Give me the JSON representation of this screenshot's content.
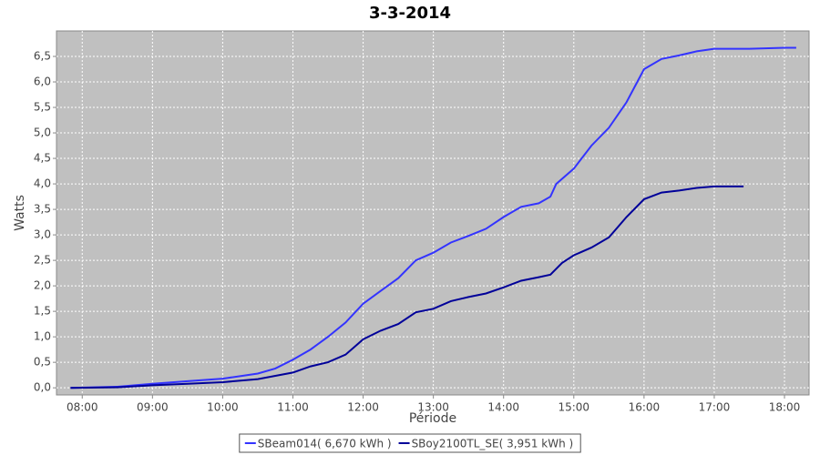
{
  "chart_data": {
    "type": "line",
    "title": "3-3-2014",
    "x_label": "Période",
    "y_label": "Watts",
    "xlim": [
      "07:38",
      "18:21"
    ],
    "xticks": [
      "08:00",
      "09:00",
      "10:00",
      "11:00",
      "12:00",
      "13:00",
      "14:00",
      "15:00",
      "16:00",
      "17:00",
      "18:00"
    ],
    "ylim": [
      -0.14,
      7.0
    ],
    "yticks": [
      {
        "value": 0,
        "label": "0,0"
      },
      {
        "value": 0.5,
        "label": "0,5"
      },
      {
        "value": 1,
        "label": "1,0"
      },
      {
        "value": 1.5,
        "label": "1,5"
      },
      {
        "value": 2,
        "label": "2,0"
      },
      {
        "value": 2.5,
        "label": "2,5"
      },
      {
        "value": 3,
        "label": "3,0"
      },
      {
        "value": 3.5,
        "label": "3,5"
      },
      {
        "value": 4,
        "label": "4,0"
      },
      {
        "value": 4.5,
        "label": "4,5"
      },
      {
        "value": 5,
        "label": "5,0"
      },
      {
        "value": 5.5,
        "label": "5,5"
      },
      {
        "value": 6,
        "label": "6,0"
      },
      {
        "value": 6.5,
        "label": "6,5"
      }
    ],
    "grid": true,
    "plot_background": "#c0c0c0",
    "legend": "bottom",
    "series": [
      {
        "name": "SBeam014( 6,670 kWh )",
        "color": "#3333ff",
        "x": [
          "07:50",
          "08:30",
          "09:00",
          "09:30",
          "10:00",
          "10:30",
          "10:45",
          "11:00",
          "11:15",
          "11:30",
          "11:45",
          "12:00",
          "12:15",
          "12:30",
          "12:45",
          "13:00",
          "13:15",
          "13:30",
          "13:45",
          "14:00",
          "14:15",
          "14:30",
          "14:40",
          "14:45",
          "15:00",
          "15:15",
          "15:30",
          "15:45",
          "16:00",
          "16:15",
          "16:30",
          "16:45",
          "17:00",
          "17:30",
          "18:00",
          "18:10"
        ],
        "values": [
          0,
          0.02,
          0.08,
          0.13,
          0.18,
          0.28,
          0.38,
          0.55,
          0.75,
          1.0,
          1.28,
          1.65,
          1.9,
          2.15,
          2.5,
          2.65,
          2.85,
          2.98,
          3.12,
          3.35,
          3.55,
          3.62,
          3.75,
          4.0,
          4.3,
          4.75,
          5.1,
          5.6,
          6.25,
          6.45,
          6.52,
          6.6,
          6.65,
          6.65,
          6.67,
          6.67
        ]
      },
      {
        "name": "SBoy2100TL_SE( 3,951 kWh )",
        "color": "#000099",
        "x": [
          "07:50",
          "08:30",
          "09:00",
          "09:30",
          "10:00",
          "10:30",
          "11:00",
          "11:15",
          "11:30",
          "11:45",
          "12:00",
          "12:15",
          "12:30",
          "12:45",
          "13:00",
          "13:15",
          "13:30",
          "13:45",
          "14:00",
          "14:15",
          "14:30",
          "14:40",
          "14:50",
          "15:00",
          "15:15",
          "15:30",
          "15:45",
          "16:00",
          "16:15",
          "16:30",
          "16:45",
          "17:00",
          "17:15",
          "17:25"
        ],
        "values": [
          0,
          0.01,
          0.05,
          0.08,
          0.11,
          0.17,
          0.3,
          0.42,
          0.5,
          0.65,
          0.95,
          1.12,
          1.25,
          1.48,
          1.55,
          1.7,
          1.78,
          1.85,
          1.97,
          2.1,
          2.17,
          2.22,
          2.45,
          2.6,
          2.75,
          2.95,
          3.35,
          3.7,
          3.83,
          3.87,
          3.92,
          3.95,
          3.95,
          3.95
        ]
      }
    ]
  }
}
